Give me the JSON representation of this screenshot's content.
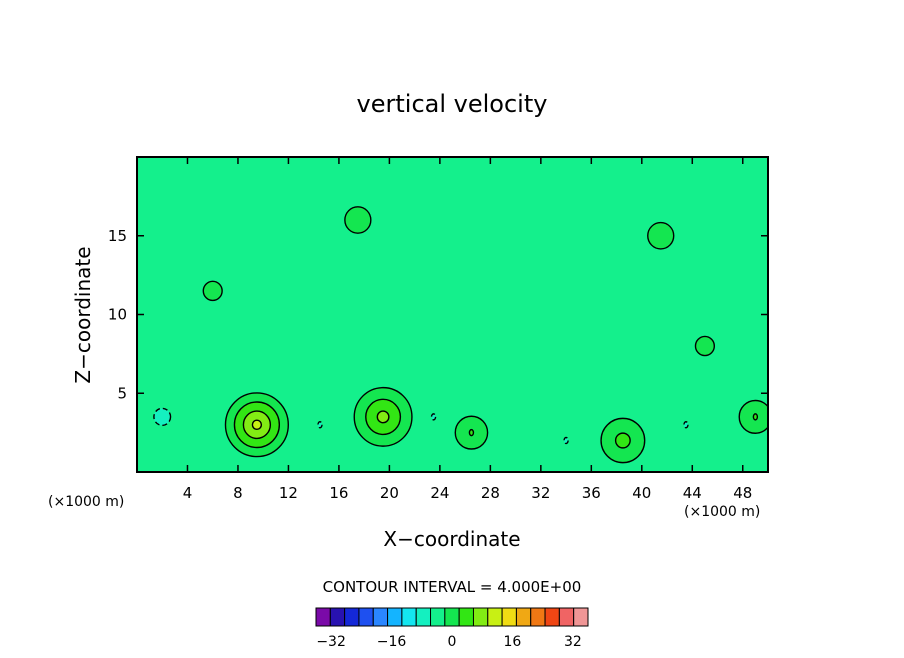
{
  "chart_data": {
    "type": "heatmap",
    "title": "vertical velocity",
    "xlabel": "X−coordinate",
    "ylabel": "Z−coordinate",
    "x_unit_left": "(×1000 m)",
    "x_unit_right": "(×1000 m)",
    "xlim": [
      0,
      50
    ],
    "ylim": [
      0,
      20
    ],
    "x_ticks": [
      4,
      8,
      12,
      16,
      20,
      24,
      28,
      32,
      36,
      40,
      44,
      48
    ],
    "x_tick_labels": [
      "4",
      "8",
      "12",
      "16",
      "20",
      "24",
      "28",
      "32",
      "36",
      "40",
      "44",
      "48"
    ],
    "y_ticks": [
      5,
      10,
      15
    ],
    "y_tick_labels": [
      "5",
      "10",
      "15"
    ],
    "contour_interval_text": "CONTOUR INTERVAL = 4.000E+00",
    "contour_interval": 4,
    "colorbar": {
      "levels": [
        -36,
        -32,
        -28,
        -24,
        -20,
        -16,
        -12,
        -8,
        -4,
        0,
        4,
        8,
        12,
        16,
        20,
        24,
        28,
        32,
        36
      ],
      "colors": [
        "#7a0aa8",
        "#2812b0",
        "#1428d8",
        "#1e50f0",
        "#2a86ff",
        "#14b4ff",
        "#14e6f0",
        "#14f0c0",
        "#14f08c",
        "#14e650",
        "#32e614",
        "#82ec14",
        "#c8f014",
        "#f0dc14",
        "#f0a814",
        "#f07814",
        "#f04614",
        "#f06464",
        "#f09696"
      ],
      "tick_values": [
        -32,
        -16,
        0,
        16,
        32
      ],
      "tick_labels": [
        "−32",
        "−16",
        "0",
        "16",
        "32"
      ]
    },
    "features": [
      {
        "x": 9.5,
        "z": 3.0,
        "value": 14,
        "sign": "updraft"
      },
      {
        "x": 19.5,
        "z": 3.5,
        "value": 10,
        "sign": "updraft"
      },
      {
        "x": 38.5,
        "z": 2.0,
        "value": 6,
        "sign": "updraft"
      },
      {
        "x": 26.5,
        "z": 2.5,
        "value": 4,
        "sign": "updraft"
      },
      {
        "x": 49.0,
        "z": 3.5,
        "value": 4,
        "sign": "updraft"
      },
      {
        "x": 2.0,
        "z": 3.5,
        "value": -6,
        "sign": "downdraft"
      },
      {
        "x": 14.5,
        "z": 3.0,
        "value": -4,
        "sign": "downdraft"
      },
      {
        "x": 23.5,
        "z": 3.5,
        "value": -4,
        "sign": "downdraft"
      },
      {
        "x": 34.0,
        "z": 2.0,
        "value": -4,
        "sign": "downdraft"
      },
      {
        "x": 43.5,
        "z": 3.0,
        "value": -4,
        "sign": "downdraft"
      },
      {
        "x": 17.5,
        "z": 16.0,
        "value": 3,
        "sign": "updraft"
      },
      {
        "x": 41.5,
        "z": 15.0,
        "value": 3,
        "sign": "updraft"
      },
      {
        "x": 6.0,
        "z": 11.5,
        "value": 2,
        "sign": "updraft"
      },
      {
        "x": 45.0,
        "z": 8.0,
        "value": 2,
        "sign": "updraft"
      }
    ]
  }
}
